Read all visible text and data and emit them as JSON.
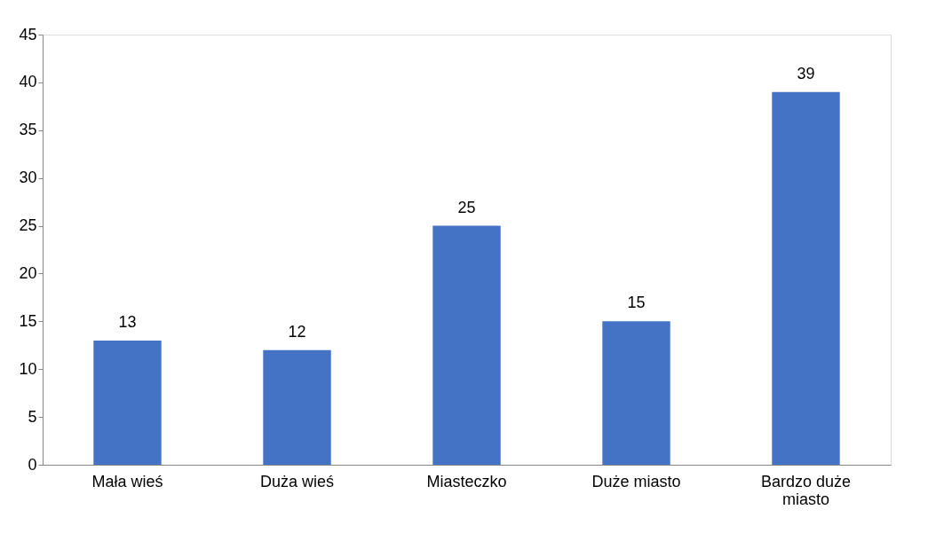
{
  "chart_data": {
    "type": "bar",
    "categories": [
      "Mała wieś",
      "Duża wieś",
      "Miasteczko",
      "Duże miasto",
      "Bardzo duże miasto"
    ],
    "values": [
      13,
      12,
      25,
      15,
      39
    ],
    "color": "#4472c4",
    "ylim": [
      0,
      45
    ],
    "yticks": [
      0,
      5,
      10,
      15,
      20,
      25,
      30,
      35,
      40,
      45
    ],
    "grid": false,
    "data_labels": true
  }
}
